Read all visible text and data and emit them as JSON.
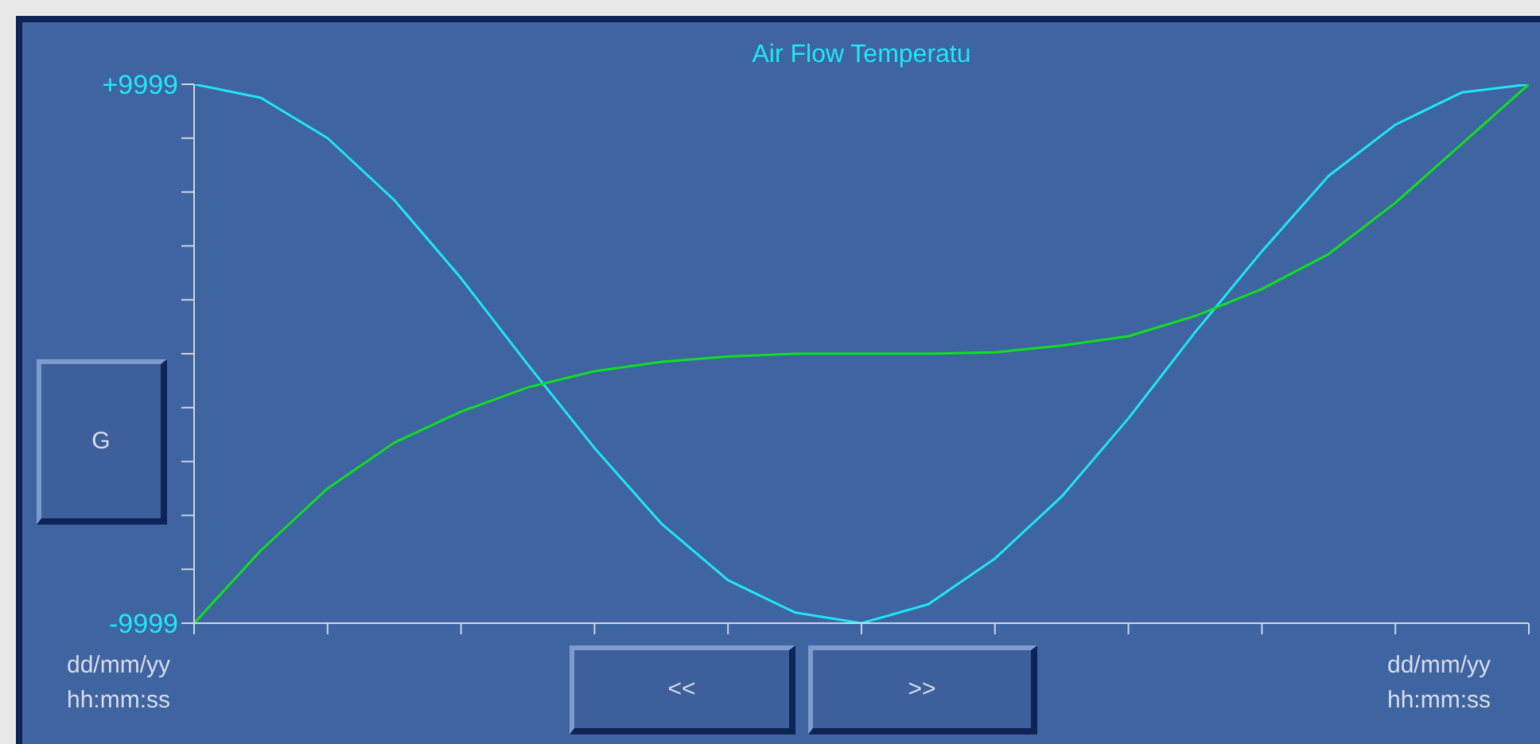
{
  "chart_data": {
    "type": "line",
    "title": "Air Flow Temperatu",
    "categories": [
      null,
      null,
      null,
      null,
      null,
      null,
      null,
      null,
      null,
      null,
      null,
      null,
      null,
      null,
      null,
      null,
      null,
      null,
      null,
      null,
      null
    ],
    "ylim": [
      -9999,
      9999
    ],
    "yticks": [
      {
        "value": -9999,
        "label": "-9999"
      },
      {
        "value": -7999.2,
        "label": null
      },
      {
        "value": -5999.4,
        "label": null
      },
      {
        "value": -3999.6,
        "label": null
      },
      {
        "value": -1999.8,
        "label": null
      },
      {
        "value": 0,
        "label": null
      },
      {
        "value": 1999.8,
        "label": null
      },
      {
        "value": 3999.6,
        "label": null
      },
      {
        "value": 5999.4,
        "label": null
      },
      {
        "value": 7999.2,
        "label": null
      },
      {
        "value": 9999,
        "label": "+9999"
      }
    ],
    "series": [
      {
        "color": "#1fe8f0",
        "values": [
          9999,
          9500,
          8000,
          5700,
          2800,
          -400,
          -3500,
          -6300,
          -8400,
          -9600,
          -9999,
          -9300,
          -7600,
          -5300,
          -2400,
          800,
          3800,
          6600,
          8500,
          9700,
          9999
        ]
      },
      {
        "color": "#10e020",
        "values": [
          -9999,
          -7300,
          -5000,
          -3300,
          -2150,
          -1250,
          -650,
          -300,
          -100,
          0,
          0,
          0,
          50,
          300,
          650,
          1400,
          2400,
          3700,
          5600,
          7800,
          9999
        ]
      }
    ],
    "annotations": [
      "dd/mm/yy\nhh:mm:ss",
      "dd/mm/yy\nhh:mm:ss",
      "G",
      "<<",
      ">>"
    ]
  }
}
